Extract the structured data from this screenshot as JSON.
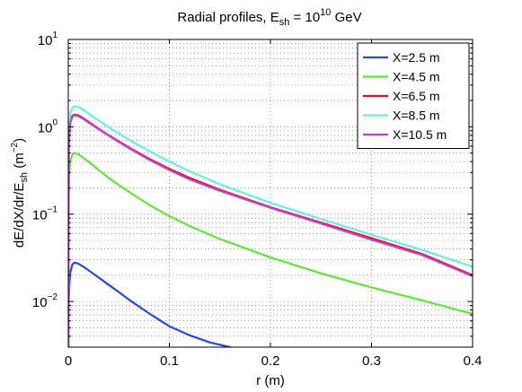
{
  "chart_data": {
    "type": "line",
    "title": {
      "prefix": "Radial profiles, E",
      "prefix_sub": "sh",
      "middle": " = 10",
      "middle_sup": "10",
      "suffix": " GeV"
    },
    "xlabel": "r (m)",
    "ylabel": {
      "main": "dE/dX/dr/E",
      "main_sub": "sh",
      "unit": " (m",
      "unit_sup": "−2",
      "unit_end": ")"
    },
    "xlim": [
      0,
      0.4
    ],
    "ylim": [
      0.003,
      10
    ],
    "yscale": "log",
    "grid": true,
    "legend_position": "top-right",
    "x_ticks": [
      {
        "value": 0,
        "label": "0"
      },
      {
        "value": 0.1,
        "label": "0.1"
      },
      {
        "value": 0.2,
        "label": "0.2"
      },
      {
        "value": 0.3,
        "label": "0.3"
      },
      {
        "value": 0.4,
        "label": "0.4"
      }
    ],
    "y_ticks": [
      {
        "value": 0.01,
        "base": "10",
        "exp": "−2"
      },
      {
        "value": 0.1,
        "base": "10",
        "exp": "−1"
      },
      {
        "value": 1,
        "base": "10",
        "exp": "0"
      },
      {
        "value": 10,
        "base": "10",
        "exp": "1"
      }
    ],
    "series": [
      {
        "name": "X=2.5 m",
        "color": "#2648e0",
        "x": [
          0.0005,
          0.001,
          0.002,
          0.004,
          0.006,
          0.008,
          0.01,
          0.015,
          0.02,
          0.03,
          0.04,
          0.05,
          0.06,
          0.08,
          0.1,
          0.12,
          0.14,
          0.16
        ],
        "y": [
          0.0105,
          0.0155,
          0.0215,
          0.0265,
          0.0278,
          0.0276,
          0.027,
          0.025,
          0.0228,
          0.0188,
          0.0155,
          0.0128,
          0.0105,
          0.0073,
          0.0052,
          0.0041,
          0.0034,
          0.003
        ]
      },
      {
        "name": "X=4.5 m",
        "color": "#5fe830",
        "x": [
          0.0005,
          0.001,
          0.002,
          0.004,
          0.006,
          0.008,
          0.01,
          0.015,
          0.02,
          0.03,
          0.04,
          0.05,
          0.06,
          0.08,
          0.1,
          0.12,
          0.15,
          0.2,
          0.25,
          0.3,
          0.35,
          0.4
        ],
        "y": [
          0.2,
          0.3,
          0.41,
          0.48,
          0.5,
          0.495,
          0.485,
          0.44,
          0.4,
          0.32,
          0.26,
          0.215,
          0.18,
          0.128,
          0.095,
          0.073,
          0.052,
          0.032,
          0.021,
          0.0145,
          0.0103,
          0.0072
        ]
      },
      {
        "name": "X=6.5 m",
        "color": "#e01010",
        "x": [
          0.0005,
          0.001,
          0.002,
          0.004,
          0.006,
          0.008,
          0.01,
          0.015,
          0.02,
          0.03,
          0.04,
          0.05,
          0.06,
          0.08,
          0.1,
          0.12,
          0.15,
          0.2,
          0.25,
          0.3,
          0.35,
          0.4
        ],
        "y": [
          0.6,
          0.85,
          1.15,
          1.33,
          1.38,
          1.37,
          1.35,
          1.25,
          1.14,
          0.95,
          0.8,
          0.68,
          0.58,
          0.43,
          0.33,
          0.26,
          0.19,
          0.12,
          0.08,
          0.053,
          0.035,
          0.02
        ]
      },
      {
        "name": "X=8.5 m",
        "color": "#66f0e0",
        "x": [
          0.0005,
          0.001,
          0.002,
          0.004,
          0.006,
          0.008,
          0.01,
          0.015,
          0.02,
          0.03,
          0.04,
          0.05,
          0.06,
          0.08,
          0.1,
          0.12,
          0.15,
          0.2,
          0.25,
          0.3,
          0.35,
          0.4
        ],
        "y": [
          0.7,
          1.05,
          1.42,
          1.65,
          1.72,
          1.71,
          1.68,
          1.56,
          1.42,
          1.18,
          0.99,
          0.84,
          0.71,
          0.53,
          0.4,
          0.31,
          0.22,
          0.135,
          0.088,
          0.058,
          0.039,
          0.025
        ]
      },
      {
        "name": "X=10.5 m",
        "color": "#c040d8",
        "x": [
          0.0005,
          0.001,
          0.002,
          0.004,
          0.006,
          0.008,
          0.01,
          0.015,
          0.02,
          0.03,
          0.04,
          0.05,
          0.06,
          0.08,
          0.1,
          0.12,
          0.15,
          0.2,
          0.25,
          0.3,
          0.35,
          0.4
        ],
        "y": [
          0.58,
          0.82,
          1.12,
          1.3,
          1.35,
          1.34,
          1.32,
          1.23,
          1.12,
          0.94,
          0.79,
          0.67,
          0.57,
          0.42,
          0.32,
          0.25,
          0.185,
          0.118,
          0.078,
          0.051,
          0.034,
          0.0195
        ]
      }
    ]
  }
}
